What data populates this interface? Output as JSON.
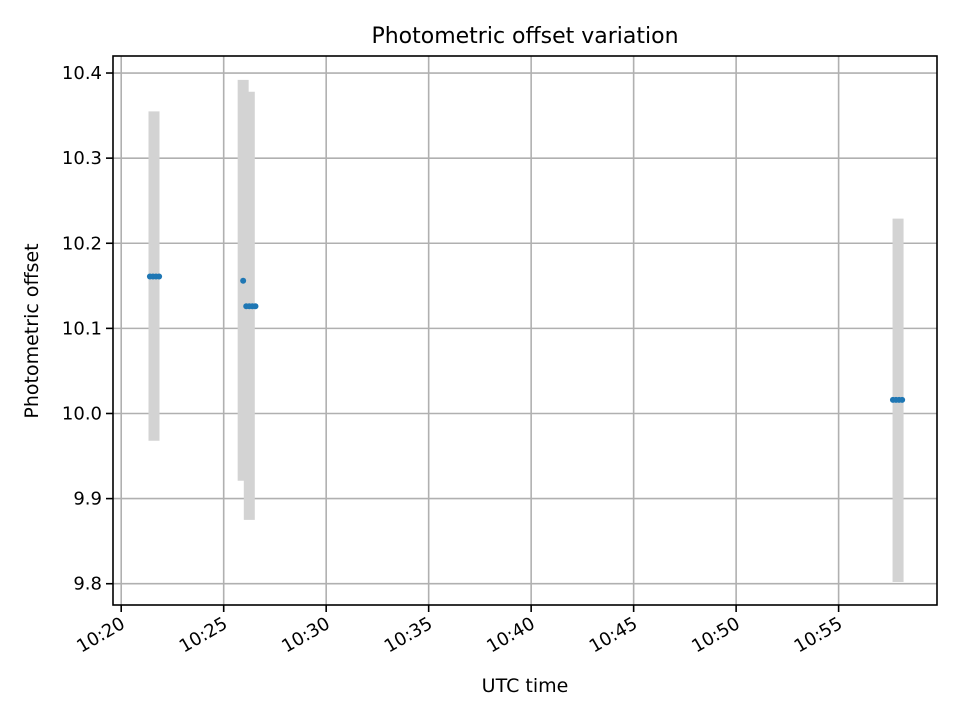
{
  "chart_data": {
    "type": "scatter",
    "title": "Photometric offset variation",
    "xlabel": "UTC time",
    "ylabel": "Photometric offset",
    "x_ticks": [
      "10:20",
      "10:25",
      "10:30",
      "10:35",
      "10:40",
      "10:45",
      "10:50",
      "10:55"
    ],
    "x_tick_minutes": [
      0,
      5,
      10,
      15,
      20,
      25,
      30,
      35
    ],
    "xlim_minutes": [
      -0.4,
      39.8
    ],
    "y_ticks": [
      "9.8",
      "9.9",
      "10.0",
      "10.1",
      "10.2",
      "10.3",
      "10.4"
    ],
    "y_tick_values": [
      9.8,
      9.9,
      10.0,
      10.1,
      10.2,
      10.3,
      10.4
    ],
    "ylim": [
      9.775,
      10.42
    ],
    "grid": true,
    "error_color": "#d3d3d3",
    "point_color": "#1f77b4",
    "error_bars": [
      {
        "x": 1.6,
        "low": 9.968,
        "high": 10.355
      },
      {
        "x": 5.95,
        "low": 9.921,
        "high": 10.392
      },
      {
        "x": 6.25,
        "low": 9.875,
        "high": 10.378
      },
      {
        "x": 37.9,
        "low": 9.802,
        "high": 10.229
      }
    ],
    "points": [
      {
        "x": 1.4,
        "y": 10.161
      },
      {
        "x": 1.55,
        "y": 10.161
      },
      {
        "x": 1.7,
        "y": 10.161
      },
      {
        "x": 1.85,
        "y": 10.161
      },
      {
        "x": 5.95,
        "y": 10.156
      },
      {
        "x": 6.1,
        "y": 10.126
      },
      {
        "x": 6.25,
        "y": 10.126
      },
      {
        "x": 6.4,
        "y": 10.126
      },
      {
        "x": 6.55,
        "y": 10.126
      },
      {
        "x": 37.65,
        "y": 10.016
      },
      {
        "x": 37.8,
        "y": 10.016
      },
      {
        "x": 37.95,
        "y": 10.016
      },
      {
        "x": 38.1,
        "y": 10.016
      }
    ]
  }
}
